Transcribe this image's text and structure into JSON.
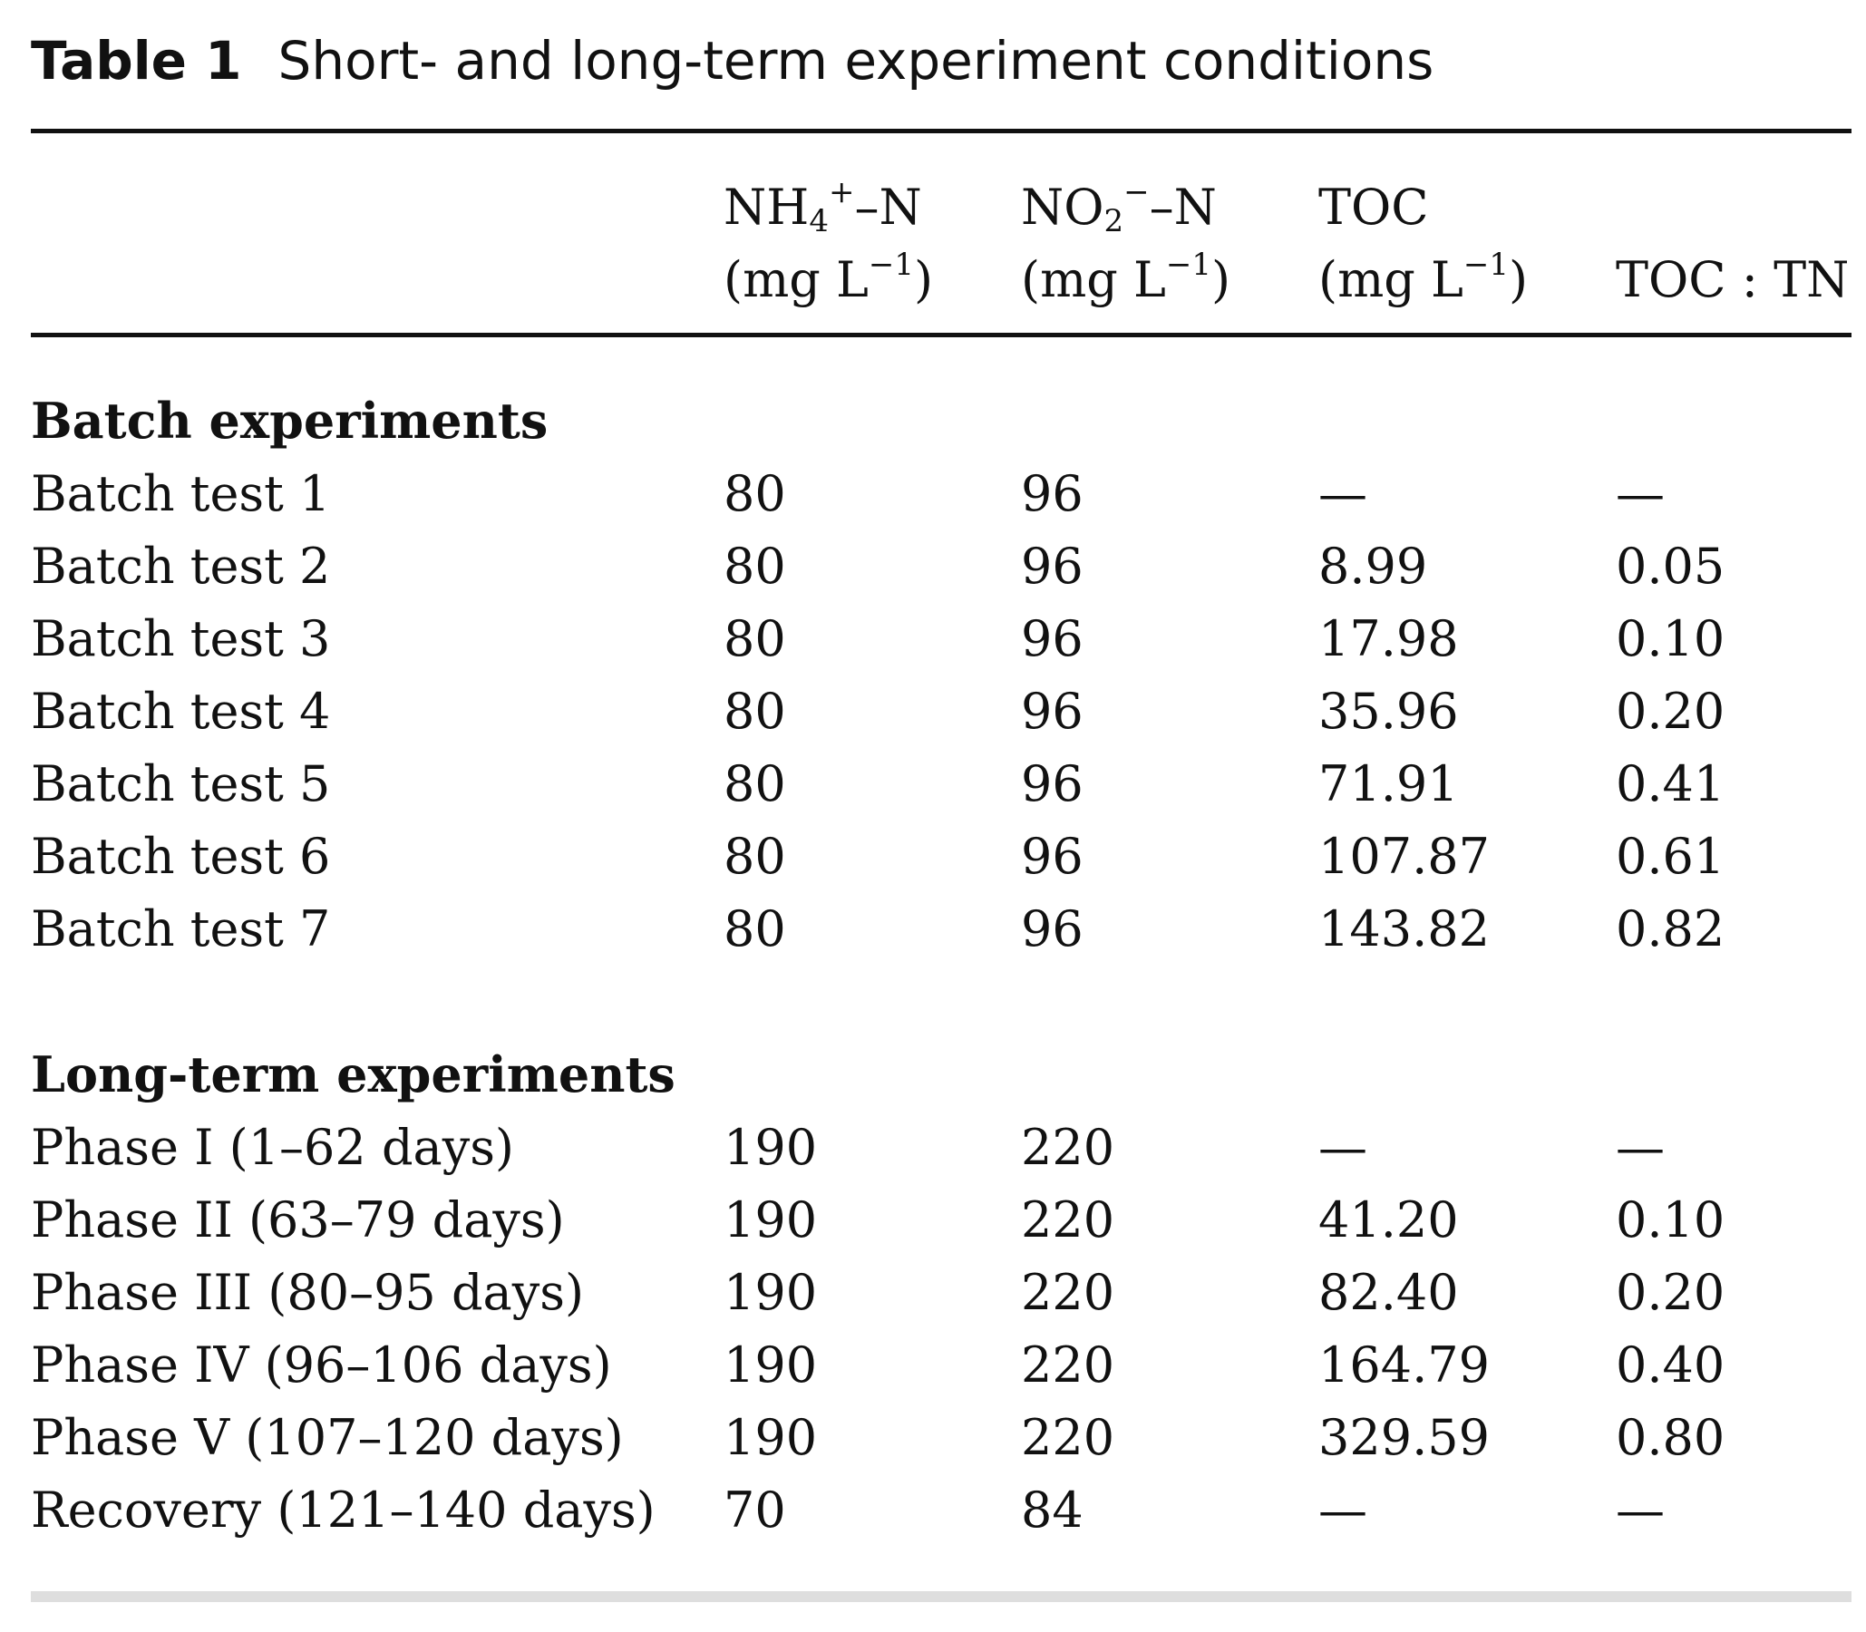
{
  "caption": {
    "label": "Table 1",
    "title": "Short- and long-term experiment conditions"
  },
  "headers": {
    "col1_line1": "NH",
    "col1_sub": "4",
    "col1_sup": "+",
    "col1_tail": "–N",
    "col2_line1": "NO",
    "col2_sub": "2",
    "col2_sup": "−",
    "col2_tail": "–N",
    "col3_line1": "TOC",
    "unit_open": "(mg L",
    "unit_sup": "−1",
    "unit_close": ")",
    "col4": "TOC : TN"
  },
  "sections": [
    {
      "title": "Batch experiments",
      "rows": [
        [
          "Batch test 1",
          "80",
          "96",
          "—",
          "—"
        ],
        [
          "Batch test 2",
          "80",
          "96",
          "8.99",
          "0.05"
        ],
        [
          "Batch test 3",
          "80",
          "96",
          "17.98",
          "0.10"
        ],
        [
          "Batch test 4",
          "80",
          "96",
          "35.96",
          "0.20"
        ],
        [
          "Batch test 5",
          "80",
          "96",
          "71.91",
          "0.41"
        ],
        [
          "Batch test 6",
          "80",
          "96",
          "107.87",
          "0.61"
        ],
        [
          "Batch test 7",
          "80",
          "96",
          "143.82",
          "0.82"
        ]
      ]
    },
    {
      "title": "Long-term experiments",
      "rows": [
        [
          "Phase I (1–62 days)",
          "190",
          "220",
          "—",
          "—"
        ],
        [
          "Phase II (63–79 days)",
          "190",
          "220",
          "41.20",
          "0.10"
        ],
        [
          "Phase III (80–95 days)",
          "190",
          "220",
          "82.40",
          "0.20"
        ],
        [
          "Phase IV (96–106 days)",
          "190",
          "220",
          "164.79",
          "0.40"
        ],
        [
          "Phase V (107–120 days)",
          "190",
          "220",
          "329.59",
          "0.80"
        ],
        [
          "Recovery (121–140 days)",
          "70",
          "84",
          "—",
          "—"
        ]
      ]
    }
  ]
}
